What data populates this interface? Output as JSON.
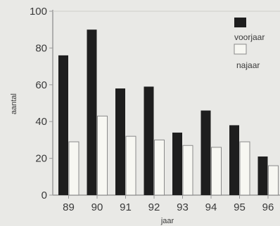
{
  "chart_data": {
    "type": "bar",
    "title": "",
    "xlabel": "jaar",
    "ylabel": "aantal",
    "categories": [
      "89",
      "90",
      "91",
      "92",
      "93",
      "94",
      "95",
      "96"
    ],
    "series": [
      {
        "name": "voorjaar",
        "values": [
          76,
          90,
          58,
          59,
          34,
          46,
          38,
          21
        ]
      },
      {
        "name": "najaar",
        "values": [
          29,
          43,
          32,
          30,
          27,
          26,
          29,
          16
        ]
      }
    ],
    "ylim": [
      0,
      100
    ],
    "yticks": [
      "0",
      "20",
      "40",
      "60",
      "80",
      "100"
    ],
    "grid": false,
    "legend": "top-right",
    "colors": {
      "voorjaar": "#1e1e1e",
      "najaar": "#f7f7f2",
      "axis": "#9a9a9a",
      "background": "#e9e9e6"
    }
  }
}
